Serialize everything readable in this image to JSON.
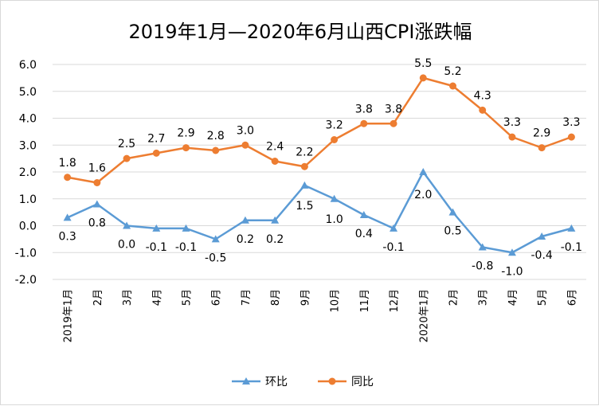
{
  "chart_data": {
    "type": "line",
    "title": "2019年1月—2020年6月山西CPI涨跌幅",
    "categories": [
      "2019年1月",
      "2月",
      "3月",
      "4月",
      "5月",
      "6月",
      "7月",
      "8月",
      "9月",
      "10月",
      "11月",
      "12月",
      "2020年1月",
      "2月",
      "3月",
      "4月",
      "5月",
      "6月"
    ],
    "ylim": [
      -2.0,
      6.0
    ],
    "yticks": [
      "6.0",
      "5.0",
      "4.0",
      "3.0",
      "2.0",
      "1.0",
      "0.0",
      "-1.0",
      "-2.0"
    ],
    "grid": true,
    "legend_position": "bottom",
    "series": [
      {
        "name": "环比",
        "color": "#5b9bd5",
        "marker": "triangle",
        "values": [
          0.3,
          0.8,
          0.0,
          -0.1,
          -0.1,
          -0.5,
          0.2,
          0.2,
          1.5,
          1.0,
          0.4,
          -0.1,
          2.0,
          0.5,
          -0.8,
          -1.0,
          -0.4,
          -0.1
        ],
        "labels": [
          "0.3",
          "0.8",
          "0.0",
          "-0.1",
          "-0.1",
          "-0.5",
          "0.2",
          "0.2",
          "1.5",
          "1.0",
          "0.4",
          "-0.1",
          "2.0",
          "0.5",
          "-0.8",
          "-1.0",
          "-0.4",
          "-0.1"
        ]
      },
      {
        "name": "同比",
        "color": "#ed7d31",
        "marker": "circle",
        "values": [
          1.8,
          1.6,
          2.5,
          2.7,
          2.9,
          2.8,
          3.0,
          2.4,
          2.2,
          3.2,
          3.8,
          3.8,
          5.5,
          5.2,
          4.3,
          3.3,
          2.9,
          3.3
        ],
        "labels": [
          "1.8",
          "1.6",
          "2.5",
          "2.7",
          "2.9",
          "2.8",
          "3.0",
          "2.4",
          "2.2",
          "3.2",
          "3.8",
          "3.8",
          "5.5",
          "5.2",
          "4.3",
          "3.3",
          "2.9",
          "3.3"
        ]
      }
    ]
  }
}
